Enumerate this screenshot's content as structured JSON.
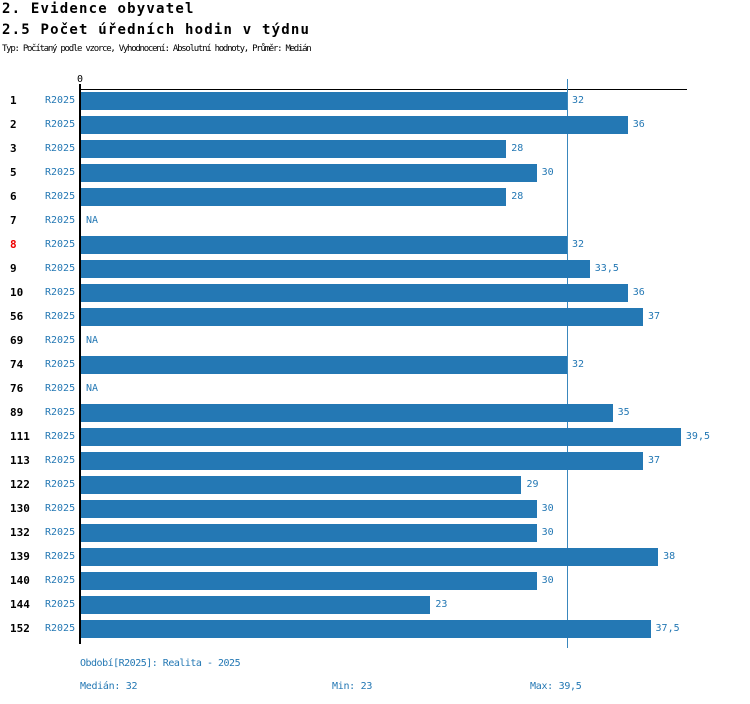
{
  "header": {
    "title": "2. Evidence obyvatel",
    "subtitle": "2.5 Počet úředních hodin v týdnu",
    "meta": "Typ: Počítaný podle vzorce, Vyhodnocení: Absolutní hodnoty, Průměr: Medián"
  },
  "chart_data": {
    "type": "bar",
    "orientation": "horizontal",
    "title": "2.5 Počet úředních hodin v týdnu",
    "x_tick_label": "0",
    "xlim": [
      0,
      40
    ],
    "grid": false,
    "series_label": "R2025",
    "categories": [
      "1",
      "2",
      "3",
      "5",
      "6",
      "7",
      "8",
      "9",
      "10",
      "56",
      "69",
      "74",
      "76",
      "89",
      "111",
      "113",
      "122",
      "130",
      "132",
      "139",
      "140",
      "144",
      "152"
    ],
    "values": [
      32,
      36,
      28,
      30,
      28,
      null,
      32,
      33.5,
      36,
      37,
      null,
      32,
      null,
      35,
      39.5,
      37,
      29,
      30,
      30,
      38,
      30,
      23,
      37.5
    ],
    "value_labels": [
      "32",
      "36",
      "28",
      "30",
      "28",
      "NA",
      "32",
      "33,5",
      "36",
      "37",
      "NA",
      "32",
      "NA",
      "35",
      "39,5",
      "37",
      "29",
      "30",
      "30",
      "38",
      "30",
      "23",
      "37,5"
    ],
    "na_label": "NA",
    "highlighted_category": "8",
    "median_line_value": 32,
    "stats": {
      "median": 32,
      "min": 23,
      "max": 39.5
    }
  },
  "footer": {
    "period": "Období[R2025]: Realita - 2025",
    "median": "Medián: 32",
    "min": "Min: 23",
    "max": "Max: 39,5"
  },
  "colors": {
    "bar": "#2478b4",
    "label_blue": "#2478b4",
    "median_line": "#3a87bd",
    "highlight_red": "#ee0000",
    "axis": "#000000"
  }
}
